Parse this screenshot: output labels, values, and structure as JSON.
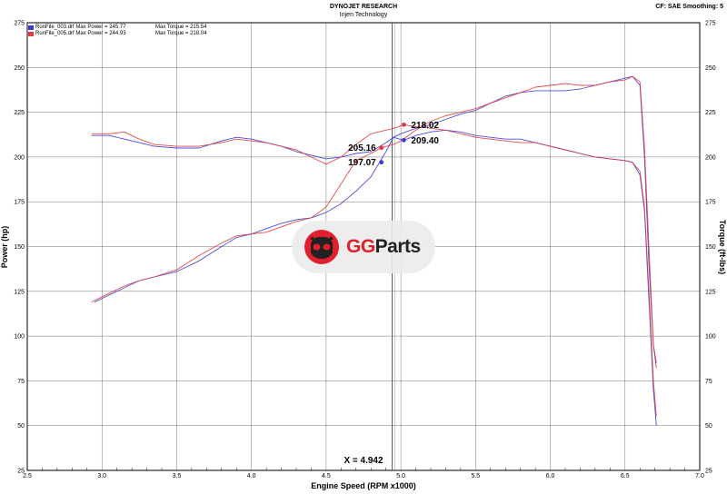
{
  "header": {
    "title": "DYNOJET RESEARCH",
    "subtitle": "Injen Technology",
    "right": "CF: SAE  Smoothing: 5"
  },
  "legend": [
    {
      "file": "RunFile_003.drf",
      "power_label": "Max Power = 245.77",
      "torque_label": "Max Torque = 215.54",
      "color": "#3a3ad8"
    },
    {
      "file": "RunFile_005.drf",
      "power_label": "Max Power = 244.93",
      "torque_label": "Max Torque = 218.04",
      "color": "#e03a3a"
    }
  ],
  "watermark": {
    "brand_a": "GG",
    "brand_b": "Parts"
  },
  "colors": {
    "blue": "#3a3ad8",
    "red": "#e03a3a",
    "cursor": "#666666",
    "grid": "#000000"
  },
  "chart_data": {
    "type": "line",
    "xlabel": "Engine Speed (RPM x1000)",
    "ylabel_left": "Power (hp)",
    "ylabel_right": "Torque (ft-lbs)",
    "xlim": [
      2.5,
      7.0
    ],
    "ylim": [
      25,
      275
    ],
    "x_ticks": [
      "2.5",
      "3.0",
      "3.5",
      "4.0",
      "4.5",
      "5.0",
      "5.5",
      "6.0",
      "6.5",
      "7.0"
    ],
    "y_ticks": [
      "25",
      "50",
      "75",
      "100",
      "125",
      "150",
      "175",
      "200",
      "225",
      "250",
      "275"
    ],
    "grid": true,
    "cursor": {
      "x": 4.942,
      "label": "X = 4.942"
    },
    "markers": [
      {
        "series": "RunFile_005.drf Torque",
        "x": 5.02,
        "y": 218.02,
        "label": "218.02",
        "color": "#e03a3a"
      },
      {
        "series": "RunFile_005.drf Power",
        "x": 4.87,
        "y": 205.16,
        "label": "205.16",
        "color": "#e03a3a"
      },
      {
        "series": "RunFile_003.drf Torque",
        "x": 5.02,
        "y": 209.4,
        "label": "209.40",
        "color": "#3a3ad8"
      },
      {
        "series": "RunFile_003.drf Power",
        "x": 4.87,
        "y": 197.07,
        "label": "197.07",
        "color": "#3a3ad8"
      }
    ],
    "series": [
      {
        "name": "RunFile_003.drf Power",
        "color": "#3a3ad8",
        "x": [
          2.95,
          3.05,
          3.15,
          3.25,
          3.35,
          3.5,
          3.65,
          3.8,
          3.9,
          4.0,
          4.1,
          4.2,
          4.3,
          4.4,
          4.5,
          4.6,
          4.7,
          4.8,
          4.9,
          4.95,
          5.0,
          5.1,
          5.2,
          5.3,
          5.4,
          5.5,
          5.6,
          5.7,
          5.8,
          5.9,
          6.0,
          6.1,
          6.2,
          6.3,
          6.4,
          6.5,
          6.55,
          6.6,
          6.63,
          6.66,
          6.69,
          6.71
        ],
        "y": [
          119,
          123,
          127,
          131,
          133,
          136,
          142,
          150,
          155,
          157,
          160,
          163,
          165,
          166,
          169,
          174,
          181,
          189,
          203,
          211,
          213,
          216,
          218,
          221,
          224,
          226,
          230,
          234,
          236,
          237,
          237,
          237,
          238,
          240,
          242,
          244,
          245,
          240,
          200,
          140,
          95,
          85
        ]
      },
      {
        "name": "RunFile_005.drf Power",
        "color": "#e03a3a",
        "x": [
          2.93,
          3.05,
          3.15,
          3.25,
          3.35,
          3.5,
          3.65,
          3.8,
          3.9,
          4.0,
          4.1,
          4.2,
          4.3,
          4.4,
          4.5,
          4.6,
          4.7,
          4.8,
          4.87,
          4.95,
          5.0,
          5.1,
          5.2,
          5.3,
          5.4,
          5.5,
          5.6,
          5.7,
          5.8,
          5.9,
          6.0,
          6.1,
          6.2,
          6.3,
          6.4,
          6.5,
          6.55,
          6.6,
          6.63,
          6.66,
          6.69,
          6.71
        ],
        "y": [
          119,
          124,
          128,
          131,
          133,
          137,
          145,
          152,
          156,
          157,
          158,
          161,
          164,
          166,
          172,
          185,
          198,
          202,
          205.16,
          207,
          209,
          215,
          220,
          223,
          225,
          227,
          230,
          233,
          236,
          239,
          240,
          241,
          240,
          240,
          242,
          243,
          245,
          242,
          205,
          150,
          95,
          82
        ]
      },
      {
        "name": "RunFile_003.drf Torque",
        "color": "#3a3ad8",
        "x": [
          2.93,
          3.05,
          3.15,
          3.25,
          3.35,
          3.5,
          3.65,
          3.8,
          3.9,
          4.0,
          4.1,
          4.2,
          4.3,
          4.4,
          4.5,
          4.6,
          4.7,
          4.8,
          4.9,
          4.95,
          5.02,
          5.1,
          5.2,
          5.3,
          5.4,
          5.5,
          5.6,
          5.7,
          5.8,
          5.9,
          6.0,
          6.1,
          6.2,
          6.3,
          6.4,
          6.5,
          6.55,
          6.6,
          6.63,
          6.66,
          6.69,
          6.71
        ],
        "y": [
          212,
          212,
          210,
          208,
          206,
          205,
          205,
          209,
          211,
          210,
          208,
          206,
          203,
          201,
          199,
          200,
          202,
          203,
          208,
          211,
          209.4,
          212,
          214,
          215,
          214,
          212,
          211,
          210,
          210,
          208,
          206,
          204,
          202,
          200,
          199,
          198,
          197,
          190,
          170,
          120,
          70,
          50
        ]
      },
      {
        "name": "RunFile_005.drf Torque",
        "color": "#e03a3a",
        "x": [
          2.93,
          3.05,
          3.15,
          3.25,
          3.35,
          3.5,
          3.65,
          3.8,
          3.9,
          4.0,
          4.1,
          4.2,
          4.3,
          4.4,
          4.5,
          4.6,
          4.7,
          4.8,
          4.9,
          4.95,
          5.02,
          5.1,
          5.2,
          5.3,
          5.4,
          5.5,
          5.6,
          5.7,
          5.8,
          5.9,
          6.0,
          6.1,
          6.2,
          6.3,
          6.4,
          6.5,
          6.55,
          6.6,
          6.63,
          6.66,
          6.69,
          6.71
        ],
        "y": [
          213,
          213,
          214,
          210,
          207,
          206,
          206,
          208,
          210,
          209,
          208,
          206,
          204,
          200,
          196,
          200,
          207,
          213,
          215,
          216,
          218.02,
          217,
          216,
          215,
          213,
          211,
          210,
          209,
          208,
          208,
          206,
          204,
          202,
          200,
          199,
          198,
          197,
          192,
          172,
          125,
          75,
          55
        ]
      }
    ]
  }
}
